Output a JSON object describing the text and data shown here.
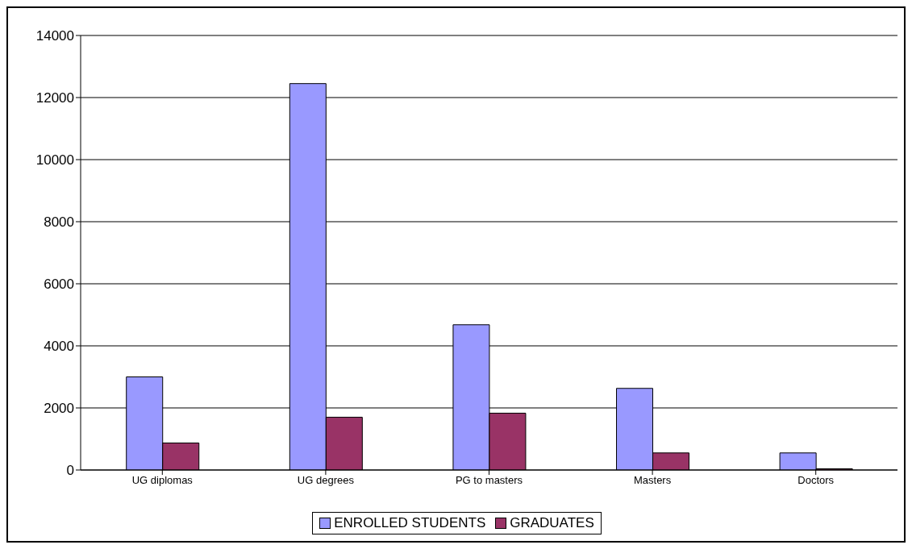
{
  "chart_data": {
    "type": "bar",
    "categories": [
      "UG diplomas",
      "UG degrees",
      "PG to masters",
      "Masters",
      "Doctors"
    ],
    "series": [
      {
        "name": "ENROLLED STUDENTS",
        "color": "#9999ff",
        "values": [
          3000,
          12450,
          4680,
          2630,
          550
        ]
      },
      {
        "name": "GRADUATES",
        "color": "#993366",
        "values": [
          870,
          1700,
          1830,
          550,
          40
        ]
      }
    ],
    "ylim": [
      0,
      14000
    ],
    "yticks": [
      0,
      2000,
      4000,
      6000,
      8000,
      10000,
      12000,
      14000
    ],
    "grid": "y",
    "legend": "bottom"
  }
}
